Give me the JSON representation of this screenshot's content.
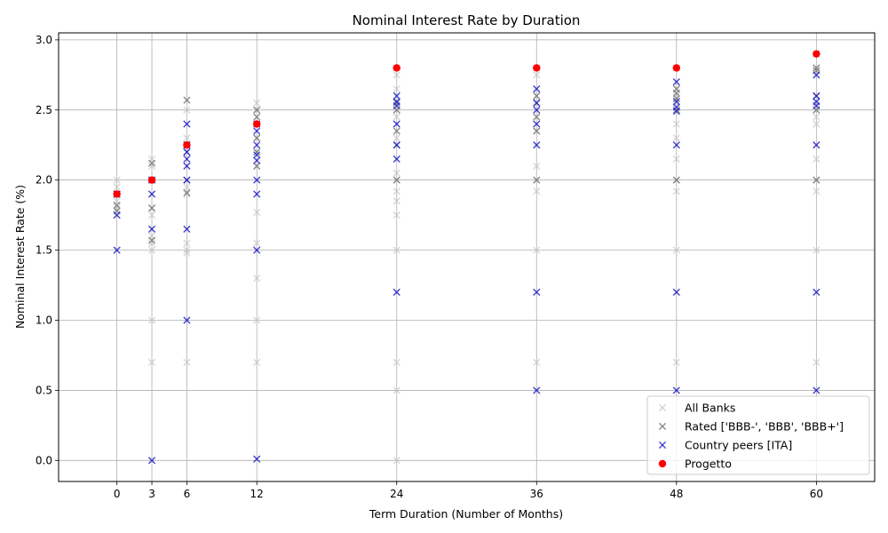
{
  "chart_data": {
    "type": "scatter",
    "title": "Nominal Interest Rate by Duration",
    "xlabel": "Term Duration (Number of Months)",
    "ylabel": "Nominal Interest Rate (%)",
    "xlim": [
      -5,
      65
    ],
    "ylim": [
      -0.15,
      3.05
    ],
    "xticks": [
      0,
      3,
      6,
      12,
      24,
      36,
      48,
      60
    ],
    "yticks": [
      0.0,
      0.5,
      1.0,
      1.5,
      2.0,
      2.5,
      3.0
    ],
    "ytick_labels": [
      "0.0",
      "0.5",
      "1.0",
      "1.5",
      "2.0",
      "2.5",
      "3.0"
    ],
    "grid": true,
    "legend_position": "lower right",
    "series": [
      {
        "name": "All Banks",
        "marker": "x",
        "color": "#c8c8c8",
        "points": [
          [
            0,
            2.0
          ],
          [
            0,
            1.95
          ],
          [
            0,
            1.9
          ],
          [
            0,
            1.85
          ],
          [
            0,
            1.8
          ],
          [
            0,
            1.75
          ],
          [
            0,
            1.5
          ],
          [
            3,
            2.15
          ],
          [
            3,
            2.1
          ],
          [
            3,
            2.0
          ],
          [
            3,
            1.9
          ],
          [
            3,
            1.8
          ],
          [
            3,
            1.75
          ],
          [
            3,
            1.65
          ],
          [
            3,
            1.6
          ],
          [
            3,
            1.55
          ],
          [
            3,
            1.5
          ],
          [
            3,
            1.0
          ],
          [
            3,
            0.7
          ],
          [
            3,
            0.0
          ],
          [
            6,
            2.5
          ],
          [
            6,
            2.4
          ],
          [
            6,
            2.3
          ],
          [
            6,
            2.25
          ],
          [
            6,
            2.2
          ],
          [
            6,
            2.1
          ],
          [
            6,
            2.0
          ],
          [
            6,
            1.95
          ],
          [
            6,
            1.9
          ],
          [
            6,
            1.65
          ],
          [
            6,
            1.55
          ],
          [
            6,
            1.5
          ],
          [
            6,
            1.48
          ],
          [
            6,
            1.0
          ],
          [
            6,
            0.7
          ],
          [
            12,
            2.55
          ],
          [
            12,
            2.5
          ],
          [
            12,
            2.4
          ],
          [
            12,
            2.3
          ],
          [
            12,
            2.2
          ],
          [
            12,
            2.1
          ],
          [
            12,
            2.0
          ],
          [
            12,
            1.9
          ],
          [
            12,
            1.77
          ],
          [
            12,
            1.55
          ],
          [
            12,
            1.5
          ],
          [
            12,
            1.3
          ],
          [
            12,
            1.0
          ],
          [
            12,
            0.7
          ],
          [
            12,
            0.01
          ],
          [
            24,
            2.8
          ],
          [
            24,
            2.75
          ],
          [
            24,
            2.65
          ],
          [
            24,
            2.6
          ],
          [
            24,
            2.5
          ],
          [
            24,
            2.45
          ],
          [
            24,
            2.4
          ],
          [
            24,
            2.3
          ],
          [
            24,
            2.25
          ],
          [
            24,
            2.15
          ],
          [
            24,
            2.05
          ],
          [
            24,
            2.0
          ],
          [
            24,
            1.92
          ],
          [
            24,
            1.85
          ],
          [
            24,
            1.75
          ],
          [
            24,
            1.5
          ],
          [
            24,
            1.2
          ],
          [
            24,
            0.7
          ],
          [
            24,
            0.5
          ],
          [
            24,
            0.0
          ],
          [
            36,
            2.8
          ],
          [
            36,
            2.75
          ],
          [
            36,
            2.65
          ],
          [
            36,
            2.6
          ],
          [
            36,
            2.55
          ],
          [
            36,
            2.5
          ],
          [
            36,
            2.4
          ],
          [
            36,
            2.35
          ],
          [
            36,
            2.25
          ],
          [
            36,
            2.1
          ],
          [
            36,
            2.0
          ],
          [
            36,
            1.92
          ],
          [
            36,
            1.5
          ],
          [
            36,
            1.2
          ],
          [
            36,
            0.7
          ],
          [
            36,
            0.5
          ],
          [
            48,
            2.8
          ],
          [
            48,
            2.7
          ],
          [
            48,
            2.65
          ],
          [
            48,
            2.6
          ],
          [
            48,
            2.55
          ],
          [
            48,
            2.5
          ],
          [
            48,
            2.4
          ],
          [
            48,
            2.3
          ],
          [
            48,
            2.25
          ],
          [
            48,
            2.15
          ],
          [
            48,
            2.0
          ],
          [
            48,
            1.92
          ],
          [
            48,
            1.5
          ],
          [
            48,
            1.2
          ],
          [
            48,
            0.7
          ],
          [
            48,
            0.5
          ],
          [
            60,
            2.9
          ],
          [
            60,
            2.8
          ],
          [
            60,
            2.75
          ],
          [
            60,
            2.6
          ],
          [
            60,
            2.55
          ],
          [
            60,
            2.5
          ],
          [
            60,
            2.45
          ],
          [
            60,
            2.4
          ],
          [
            60,
            2.25
          ],
          [
            60,
            2.15
          ],
          [
            60,
            2.0
          ],
          [
            60,
            1.92
          ],
          [
            60,
            1.5
          ],
          [
            60,
            1.2
          ],
          [
            60,
            0.7
          ],
          [
            60,
            0.5
          ]
        ]
      },
      {
        "name": "Rated ['BBB-', 'BBB', 'BBB+']",
        "marker": "x",
        "color": "#7f7f7f",
        "points": [
          [
            0,
            1.9
          ],
          [
            0,
            1.82
          ],
          [
            0,
            1.78
          ],
          [
            3,
            2.12
          ],
          [
            3,
            2.0
          ],
          [
            3,
            1.8
          ],
          [
            3,
            1.57
          ],
          [
            6,
            2.57
          ],
          [
            6,
            2.25
          ],
          [
            6,
            2.2
          ],
          [
            6,
            2.0
          ],
          [
            6,
            1.91
          ],
          [
            12,
            2.5
          ],
          [
            12,
            2.45
          ],
          [
            12,
            2.3
          ],
          [
            12,
            2.2
          ],
          [
            12,
            2.1
          ],
          [
            24,
            2.55
          ],
          [
            24,
            2.5
          ],
          [
            24,
            2.35
          ],
          [
            24,
            2.25
          ],
          [
            24,
            2.0
          ],
          [
            36,
            2.6
          ],
          [
            36,
            2.55
          ],
          [
            36,
            2.45
          ],
          [
            36,
            2.35
          ],
          [
            36,
            2.0
          ],
          [
            48,
            2.65
          ],
          [
            48,
            2.62
          ],
          [
            48,
            2.58
          ],
          [
            48,
            2.5
          ],
          [
            48,
            2.0
          ],
          [
            60,
            2.8
          ],
          [
            60,
            2.78
          ],
          [
            60,
            2.6
          ],
          [
            60,
            2.5
          ],
          [
            60,
            2.0
          ]
        ]
      },
      {
        "name": "Country peers [ITA]",
        "marker": "x",
        "color": "#1f1fcc",
        "points": [
          [
            0,
            1.9
          ],
          [
            0,
            1.75
          ],
          [
            0,
            1.5
          ],
          [
            3,
            2.0
          ],
          [
            3,
            1.9
          ],
          [
            3,
            1.65
          ],
          [
            3,
            0.0
          ],
          [
            6,
            2.4
          ],
          [
            6,
            2.25
          ],
          [
            6,
            2.2
          ],
          [
            6,
            2.15
          ],
          [
            6,
            2.1
          ],
          [
            6,
            2.0
          ],
          [
            6,
            1.65
          ],
          [
            6,
            1.0
          ],
          [
            12,
            2.4
          ],
          [
            12,
            2.35
          ],
          [
            12,
            2.25
          ],
          [
            12,
            2.18
          ],
          [
            12,
            2.14
          ],
          [
            12,
            2.0
          ],
          [
            12,
            1.9
          ],
          [
            12,
            1.5
          ],
          [
            12,
            0.01
          ],
          [
            24,
            2.6
          ],
          [
            24,
            2.56
          ],
          [
            24,
            2.53
          ],
          [
            24,
            2.4
          ],
          [
            24,
            2.25
          ],
          [
            24,
            2.15
          ],
          [
            24,
            1.2
          ],
          [
            36,
            2.65
          ],
          [
            36,
            2.55
          ],
          [
            36,
            2.5
          ],
          [
            36,
            2.4
          ],
          [
            36,
            2.25
          ],
          [
            36,
            1.2
          ],
          [
            36,
            0.5
          ],
          [
            48,
            2.7
          ],
          [
            48,
            2.56
          ],
          [
            48,
            2.52
          ],
          [
            48,
            2.49
          ],
          [
            48,
            2.25
          ],
          [
            48,
            1.2
          ],
          [
            48,
            0.5
          ],
          [
            60,
            2.75
          ],
          [
            60,
            2.6
          ],
          [
            60,
            2.56
          ],
          [
            60,
            2.53
          ],
          [
            60,
            2.25
          ],
          [
            60,
            1.2
          ],
          [
            60,
            0.5
          ]
        ]
      },
      {
        "name": "Progetto",
        "marker": "o",
        "color": "#ff0000",
        "points": [
          [
            0,
            1.9
          ],
          [
            3,
            2.0
          ],
          [
            6,
            2.25
          ],
          [
            12,
            2.4
          ],
          [
            24,
            2.8
          ],
          [
            36,
            2.8
          ],
          [
            48,
            2.8
          ],
          [
            60,
            2.9
          ]
        ]
      }
    ]
  }
}
